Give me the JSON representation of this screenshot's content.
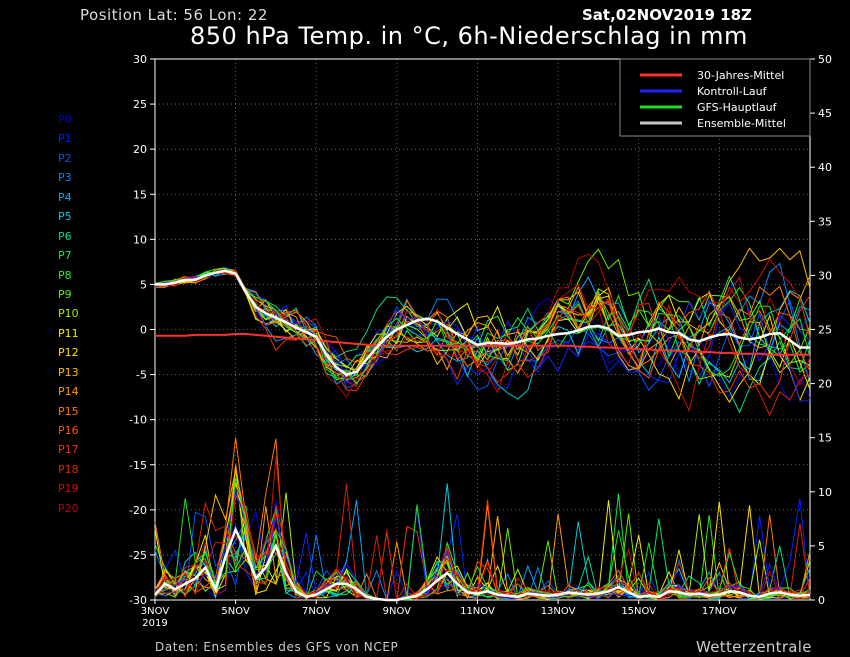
{
  "header": {
    "position_text": "Position   Lat: 56 Lon: 22",
    "date_text": "Sat,02NOV2019 18Z",
    "title": "850 hPa Temp. in °C, 6h-Niederschlag in mm"
  },
  "footer": {
    "source": "Daten: Ensembles des GFS von NCEP",
    "brand": "Wetterzentrale"
  },
  "members": [
    {
      "label": "P0",
      "color": "#0000dd"
    },
    {
      "label": "P1",
      "color": "#0022ff"
    },
    {
      "label": "P2",
      "color": "#0055ff"
    },
    {
      "label": "P3",
      "color": "#0088ff"
    },
    {
      "label": "P4",
      "color": "#00aaff"
    },
    {
      "label": "P5",
      "color": "#00ccdd"
    },
    {
      "label": "P6",
      "color": "#00dd88"
    },
    {
      "label": "P7",
      "color": "#00ee55"
    },
    {
      "label": "P8",
      "color": "#22ee22"
    },
    {
      "label": "P9",
      "color": "#66ee00"
    },
    {
      "label": "P10",
      "color": "#aaee00"
    },
    {
      "label": "P11",
      "color": "#eeee00"
    },
    {
      "label": "P12",
      "color": "#ffdd00"
    },
    {
      "label": "P13",
      "color": "#ffbb00"
    },
    {
      "label": "P14",
      "color": "#ff9900"
    },
    {
      "label": "P15",
      "color": "#ff7700"
    },
    {
      "label": "P16",
      "color": "#ff5500"
    },
    {
      "label": "P17",
      "color": "#ee3300"
    },
    {
      "label": "P18",
      "color": "#dd2200"
    },
    {
      "label": "P19",
      "color": "#cc1100"
    },
    {
      "label": "P20",
      "color": "#bb0000"
    }
  ],
  "chart_data": {
    "type": "line",
    "title": "850 hPa Temp. in °C, 6h-Niederschlag in mm",
    "x_unit": "forecast hours from 3NOV 00Z (6-hourly)",
    "x_ticks": [
      {
        "hour": 0,
        "label": "3NOV"
      },
      {
        "hour": 48,
        "label": "5NOV"
      },
      {
        "hour": 96,
        "label": "7NOV"
      },
      {
        "hour": 144,
        "label": "9NOV"
      },
      {
        "hour": 192,
        "label": "11NOV"
      },
      {
        "hour": 240,
        "label": "13NOV"
      },
      {
        "hour": 288,
        "label": "15NOV"
      },
      {
        "hour": 336,
        "label": "17NOV"
      }
    ],
    "x_year_label": "2019",
    "xlim": [
      0,
      390
    ],
    "y_left": {
      "ylim": [
        -30,
        30
      ],
      "ticks": [
        30,
        25,
        20,
        15,
        10,
        5,
        0,
        -5,
        -10,
        -15,
        -20,
        -25,
        -30
      ]
    },
    "y_right": {
      "ylim": [
        0,
        50
      ],
      "ticks": [
        50,
        45,
        40,
        35,
        30,
        25,
        20,
        15,
        10,
        5,
        0
      ]
    },
    "grid": true,
    "legend_position": "top-right",
    "legend": [
      {
        "name": "30-Jahres-Mittel",
        "color": "#ff3030"
      },
      {
        "name": "Kontroll-Lauf",
        "color": "#2020ff"
      },
      {
        "name": "GFS-Hauptlauf",
        "color": "#20dd20"
      },
      {
        "name": "Ensemble-Mittel",
        "color": "#c8c8c8"
      }
    ],
    "temperature_series": [
      {
        "name": "30-Jahres-Mittel",
        "color": "#ff3030",
        "role": "climate",
        "values": [
          -0.7,
          -0.7,
          -0.7,
          -0.7,
          -0.6,
          -0.6,
          -0.6,
          -0.6,
          -0.5,
          -0.5,
          -0.6,
          -0.7,
          -0.8,
          -0.9,
          -1.0,
          -1.1,
          -1.2,
          -1.3,
          -1.4,
          -1.5,
          -1.6,
          -1.7,
          -1.8,
          -1.8,
          -1.8,
          -1.8,
          -1.8,
          -1.8,
          -1.8,
          -1.8,
          -1.8,
          -1.8,
          -1.8,
          -1.8,
          -1.8,
          -1.8,
          -1.8,
          -1.8,
          -1.8,
          -1.8,
          -1.8,
          -1.8,
          -1.9,
          -1.9,
          -2.0,
          -2.0,
          -2.1,
          -2.1,
          -2.2,
          -2.2,
          -2.3,
          -2.3,
          -2.4,
          -2.4,
          -2.5,
          -2.5,
          -2.6,
          -2.6,
          -2.7,
          -2.7,
          -2.7,
          -2.8,
          -2.8,
          -2.8,
          -2.8,
          -2.8
        ]
      },
      {
        "name": "Ensemble-Mittel",
        "color": "#ffffff",
        "role": "mean",
        "values": [
          5.0,
          5.0,
          5.2,
          5.5,
          5.5,
          6.0,
          6.3,
          6.5,
          6.2,
          4.2,
          2.5,
          1.8,
          1.3,
          0.8,
          0.2,
          -0.3,
          -0.8,
          -2.8,
          -4.2,
          -5.0,
          -4.7,
          -3.3,
          -2.0,
          -0.8,
          0.0,
          0.5,
          1.0,
          1.2,
          0.9,
          0.2,
          -0.5,
          -1.1,
          -1.7,
          -1.5,
          -1.5,
          -1.6,
          -1.4,
          -1.1,
          -1.0,
          -0.7,
          -0.5,
          -0.4,
          -0.1,
          0.3,
          0.4,
          0.1,
          -0.7,
          -0.6,
          -0.3,
          -0.2,
          0.1,
          -0.3,
          -0.4,
          -1.1,
          -1.3,
          -0.9,
          -0.6,
          -0.5,
          -0.9,
          -1.1,
          -0.9,
          -0.5,
          -0.4,
          -1.2,
          -2.0,
          -2.0
        ]
      }
    ],
    "precipitation_series": [
      {
        "name": "Ensemble-Mittel",
        "color": "#ffffff",
        "values": [
          0.5,
          1.5,
          1.0,
          1.5,
          2.0,
          3.0,
          1.0,
          4.0,
          6.5,
          4.5,
          2.0,
          3.0,
          5.0,
          2.5,
          0.8,
          0.3,
          0.5,
          1.0,
          1.5,
          1.5,
          1.0,
          0.3,
          0.1,
          0.0,
          0.0,
          0.2,
          0.4,
          1.0,
          1.8,
          2.5,
          1.5,
          0.7,
          0.6,
          0.8,
          0.5,
          0.4,
          0.3,
          0.6,
          0.5,
          0.4,
          0.5,
          0.7,
          0.6,
          0.5,
          0.6,
          0.8,
          1.2,
          0.7,
          0.3,
          0.4,
          0.3,
          0.8,
          0.7,
          0.5,
          0.6,
          0.4,
          0.5,
          0.8,
          0.7,
          0.4,
          0.3,
          0.6,
          0.7,
          0.5,
          0.4,
          0.5
        ]
      }
    ]
  }
}
